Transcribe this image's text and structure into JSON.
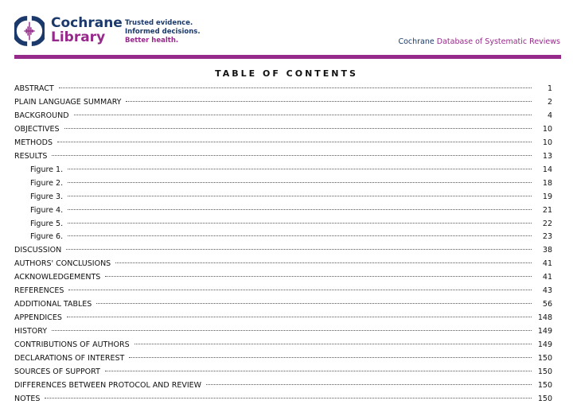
{
  "header": {
    "brand_line1": "Cochrane",
    "brand_line2": "Library",
    "tagline": [
      "Trusted evidence.",
      "Informed decisions.",
      "Better health."
    ],
    "db_prefix": "Cochrane",
    "db_name": "Database of Systematic Reviews",
    "colors": {
      "navy": "#1b3a6b",
      "purple": "#962a8a"
    }
  },
  "title": "TABLE OF CONTENTS",
  "entries": [
    {
      "label": "ABSTRACT",
      "page": "1"
    },
    {
      "label": "PLAIN LANGUAGE SUMMARY",
      "page": "2"
    },
    {
      "label": "BACKGROUND",
      "page": "4"
    },
    {
      "label": "OBJECTIVES",
      "page": "10"
    },
    {
      "label": "METHODS",
      "page": "10"
    },
    {
      "label": "RESULTS",
      "page": "13"
    },
    {
      "label": "Figure 1.",
      "page": "14",
      "sub": true
    },
    {
      "label": "Figure 2.",
      "page": "18",
      "sub": true
    },
    {
      "label": "Figure 3.",
      "page": "19",
      "sub": true
    },
    {
      "label": "Figure 4.",
      "page": "21",
      "sub": true
    },
    {
      "label": "Figure 5.",
      "page": "22",
      "sub": true
    },
    {
      "label": "Figure 6.",
      "page": "23",
      "sub": true
    },
    {
      "label": "DISCUSSION",
      "page": "38"
    },
    {
      "label": "AUTHORS' CONCLUSIONS",
      "page": "41"
    },
    {
      "label": "ACKNOWLEDGEMENTS",
      "page": "41"
    },
    {
      "label": "REFERENCES",
      "page": "43"
    },
    {
      "label": "ADDITIONAL TABLES",
      "page": "56"
    },
    {
      "label": "APPENDICES",
      "page": "148"
    },
    {
      "label": "HISTORY",
      "page": "149"
    },
    {
      "label": "CONTRIBUTIONS OF AUTHORS",
      "page": "149"
    },
    {
      "label": "DECLARATIONS OF INTEREST",
      "page": "150"
    },
    {
      "label": "SOURCES OF SUPPORT",
      "page": "150"
    },
    {
      "label": "DIFFERENCES BETWEEN PROTOCOL AND REVIEW",
      "page": "150"
    },
    {
      "label": "NOTES",
      "page": "150"
    }
  ]
}
